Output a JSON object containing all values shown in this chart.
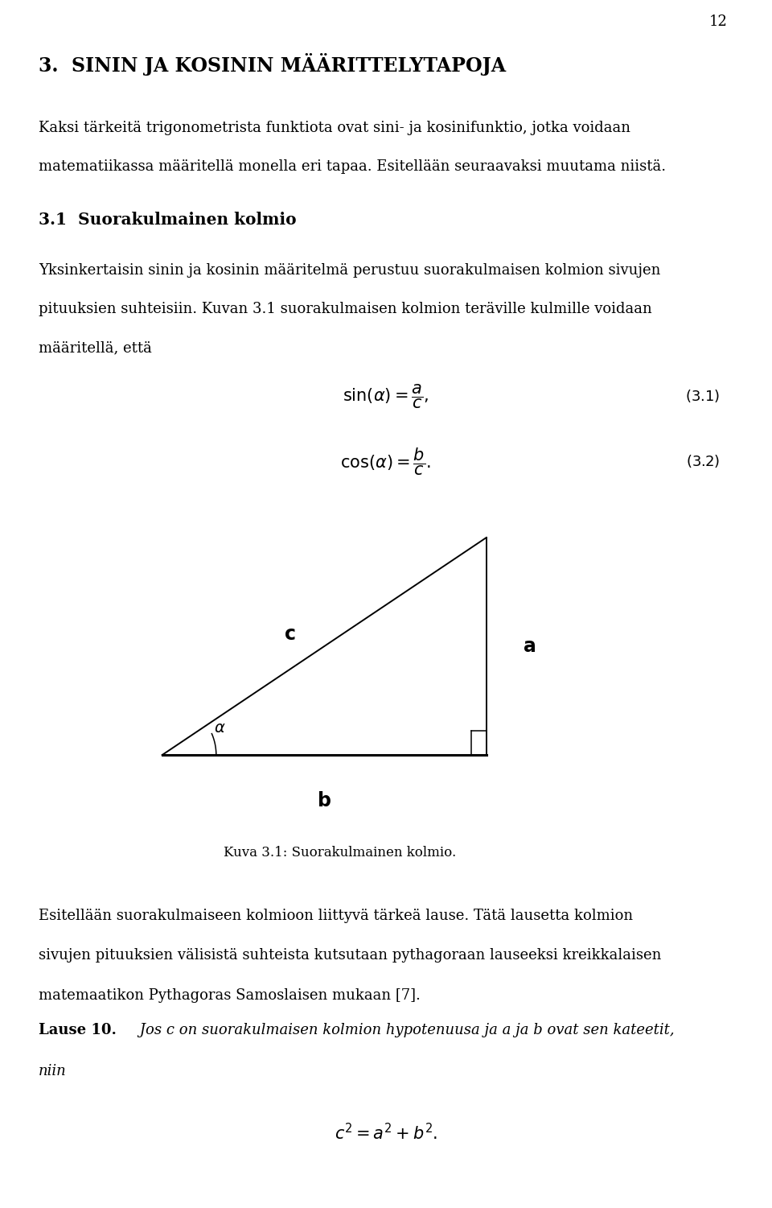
{
  "page_number": "12",
  "bg_color": "#ffffff",
  "text_color": "#000000",
  "chapter_heading": "3.  SININ JA KOSININ MÄÄRITTELYTAPOJA",
  "para1_line1": "Kaksi tärkeitä trigonometrista funktiota ovat sini- ja kosinifunktio, jotka voidaan",
  "para1_line2": "matematiikassa määritellä monella eri tapaa. Esitellään seuraavaksi muutama niistä.",
  "section_heading": "3.1  Suorakulmainen kolmio",
  "para2_line1": "Yksinkertaisin sinin ja kosinin määritelmä perustuu suorakulmaisen kolmion sivujen",
  "para2_line2": "pituuksien suhteisiin. Kuvan 3.1 suorakulmaisen kolmion teräville kulmille voidaan",
  "para2_line3": "määritellä, että",
  "eq1_num": "(3.1)",
  "eq2_num": "(3.2)",
  "fig_caption": "Kuva 3.1: Suorakulmainen kolmio.",
  "para3_line1": "Esitellään suorakulmaiseen kolmioon liittyvä tärkeä lause. Tätä lausetta kolmion",
  "para3_line2": "sivujen pituuksien välisistä suhteista kutsutaan pythagoraan lauseeksi kreikkalaisen",
  "para3_line3": "matemaatikon Pythagoras Samoslaisen mukaan [7].",
  "lause_bold": "Lause 10.",
  "lause_italic_line1": " Jos c on suorakulmaisen kolmion hypotenuusa ja a ja b ovat sen kateetit,",
  "lause_italic_line2": "niin"
}
